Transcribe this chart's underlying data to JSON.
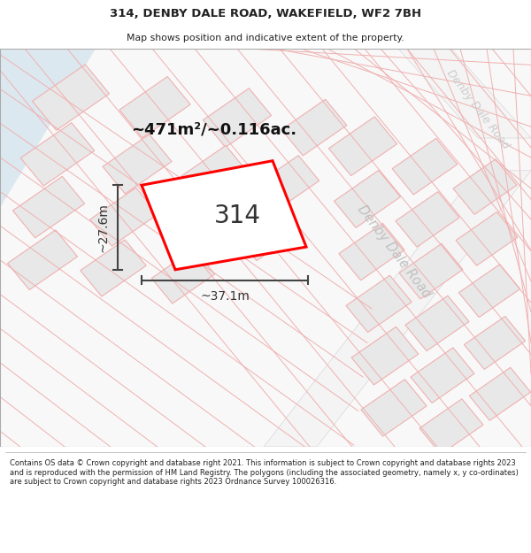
{
  "title": "314, DENBY DALE ROAD, WAKEFIELD, WF2 7BH",
  "subtitle": "Map shows position and indicative extent of the property.",
  "footer": "Contains OS data © Crown copyright and database right 2021. This information is subject to Crown copyright and database rights 2023 and is reproduced with the permission of HM Land Registry. The polygons (including the associated geometry, namely x, y co-ordinates) are subject to Crown copyright and database rights 2023 Ordnance Survey 100026316.",
  "area_label": "~471m²/~0.116ac.",
  "plot_number": "314",
  "dim_width": "~37.1m",
  "dim_height": "~27.6m",
  "plot_outline_color": "#ff0000",
  "plot_fill_color": "#ffffff",
  "road_label": "Denby Dale Road",
  "block_fill": "#e8e8e8",
  "block_edge": "#f0b0b0",
  "line_color": "#f0b0b0",
  "map_bg": "#f8f8f8",
  "blue_area_color": "#dce8f0",
  "background_color": "#ffffff",
  "dim_color": "#444444",
  "text_color": "#222222",
  "road_text_color": "#c0c0c0"
}
